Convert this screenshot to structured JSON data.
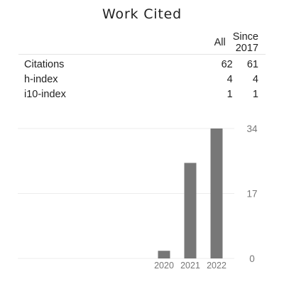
{
  "title": "Work Cited",
  "stats": {
    "headers": [
      "All",
      "Since 2017"
    ],
    "rows": [
      {
        "label": "Citations",
        "all": "62",
        "since": "61"
      },
      {
        "label": "h-index",
        "all": "4",
        "since": "4"
      },
      {
        "label": "i10-index",
        "all": "1",
        "since": "1"
      }
    ]
  },
  "colors": {
    "bar": "#777777",
    "text": "#222222",
    "tick": "#777777",
    "grid": "#ececec"
  },
  "chart_data": {
    "type": "bar",
    "categories": [
      "2020",
      "2021",
      "2022"
    ],
    "values": [
      2,
      25,
      34
    ],
    "ylim": [
      0,
      34
    ],
    "yticks": [
      "34",
      "17",
      "0"
    ],
    "grid": true,
    "title": "",
    "xlabel": "",
    "ylabel": ""
  }
}
